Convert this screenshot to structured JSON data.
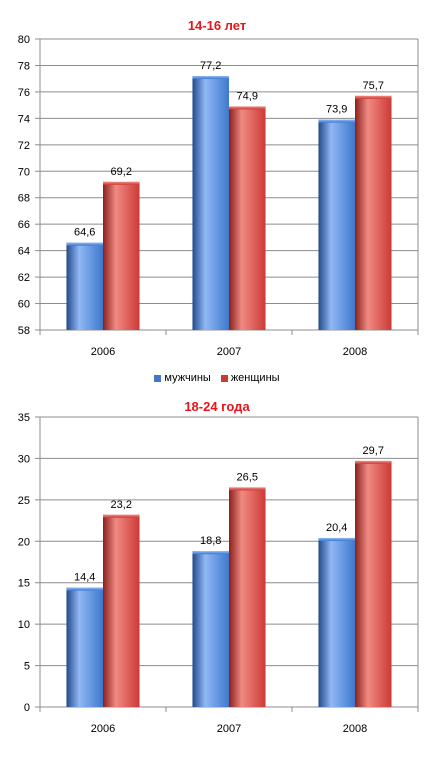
{
  "colors": {
    "series": [
      "#3f78cc",
      "#cc3a35"
    ],
    "series_light": [
      "#8fb8f5",
      "#f08a82"
    ],
    "series_dark": [
      "#23498a",
      "#8a201d"
    ],
    "axis": "#8c8c8c",
    "grid": "#8c8c8c",
    "title": "#e8141a"
  },
  "legend": {
    "items": [
      "мужчины",
      "женщины"
    ]
  },
  "chart_data": [
    {
      "type": "bar",
      "title": "14-16 лет",
      "categories": [
        "2006",
        "2007",
        "2008"
      ],
      "series": [
        {
          "name": "мужчины",
          "values": [
            64.6,
            77.2,
            73.9
          ],
          "labels": [
            "64,6",
            "77,2",
            "73,9"
          ]
        },
        {
          "name": "женщины",
          "values": [
            69.2,
            74.9,
            75.7
          ],
          "labels": [
            "69,2",
            "74,9",
            "75,7"
          ]
        }
      ],
      "ylim": [
        58,
        80
      ],
      "yticks": [
        58,
        60,
        62,
        64,
        66,
        68,
        70,
        72,
        74,
        76,
        78,
        80
      ],
      "grid": true,
      "legend": "bottom"
    },
    {
      "type": "bar",
      "title": "18-24 года",
      "categories": [
        "2006",
        "2007",
        "2008"
      ],
      "series": [
        {
          "name": "мужчины",
          "values": [
            14.4,
            18.8,
            20.4
          ],
          "labels": [
            "14,4",
            "18,8",
            "20,4"
          ]
        },
        {
          "name": "женщины",
          "values": [
            23.2,
            26.5,
            29.7
          ],
          "labels": [
            "23,2",
            "26,5",
            "29,7"
          ]
        }
      ],
      "ylim": [
        0,
        35
      ],
      "yticks": [
        0,
        5,
        10,
        15,
        20,
        25,
        30,
        35
      ],
      "grid": true,
      "legend": "none"
    }
  ]
}
